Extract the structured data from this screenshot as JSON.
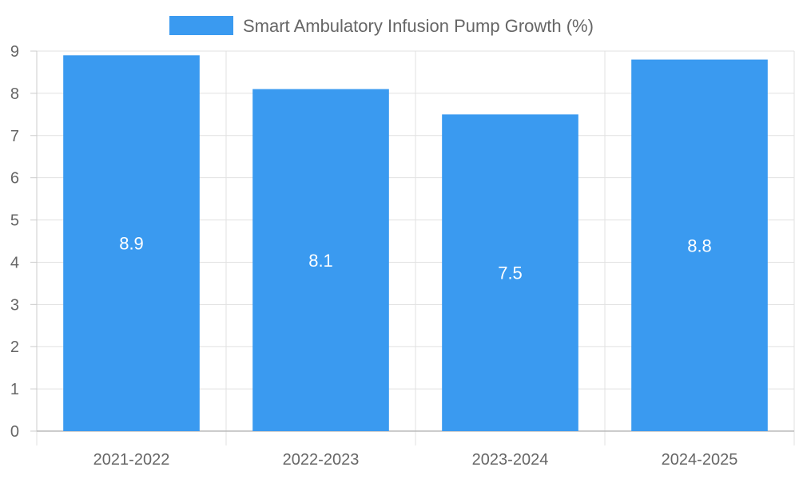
{
  "chart_data": {
    "type": "bar",
    "title": "",
    "xlabel": "",
    "ylabel": "",
    "categories": [
      "2021-2022",
      "2022-2023",
      "2023-2024",
      "2024-2025"
    ],
    "series": [
      {
        "name": "Smart Ambulatory Infusion Pump Growth (%)",
        "values": [
          8.9,
          8.1,
          7.5,
          8.8
        ],
        "color": "#3a9af0"
      }
    ],
    "ylim": [
      0,
      9
    ],
    "yticks": [
      0,
      1,
      2,
      3,
      4,
      5,
      6,
      7,
      8,
      9
    ],
    "grid": true,
    "legend": "top-center",
    "data_labels": [
      "8.9",
      "8.1",
      "7.5",
      "8.8"
    ]
  }
}
